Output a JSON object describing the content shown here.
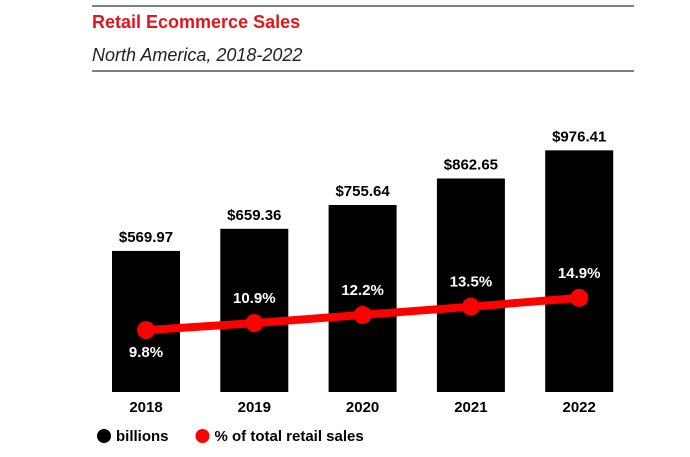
{
  "chart_data": {
    "type": "bar",
    "title": "Retail Ecommerce Sales",
    "subtitle": "North America, 2018-2022",
    "categories": [
      "2018",
      "2019",
      "2020",
      "2021",
      "2022"
    ],
    "series": [
      {
        "name": "billions",
        "type": "bar",
        "color": "#000000",
        "values": [
          569.97,
          659.36,
          755.64,
          862.65,
          976.41
        ],
        "value_labels": [
          "$569.97",
          "$659.36",
          "$755.64",
          "$862.65",
          "$976.41"
        ]
      },
      {
        "name": "% of total retail sales",
        "type": "line",
        "axis": "y2",
        "color": "#ff0000",
        "values": [
          9.8,
          10.9,
          12.2,
          13.5,
          14.9
        ],
        "value_labels": [
          "9.8%",
          "10.9%",
          "12.2%",
          "13.5%",
          "14.9%"
        ]
      }
    ],
    "ylim": [
      0,
      1200
    ],
    "y2lim": [
      0,
      47
    ]
  }
}
